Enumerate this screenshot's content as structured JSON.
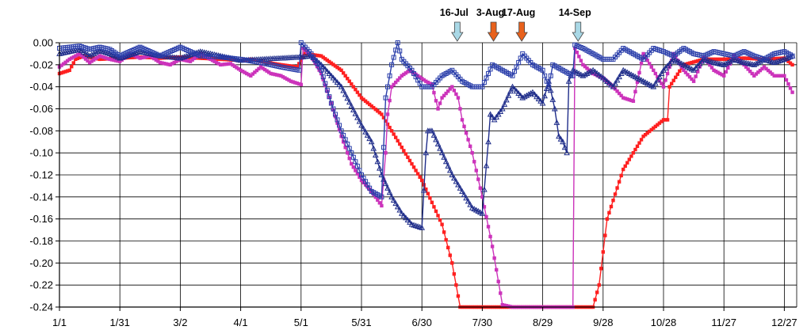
{
  "chart_data": {
    "type": "line",
    "title": "",
    "xlabel": "",
    "ylabel": "",
    "x_tick_labels": [
      "1/1",
      "1/31",
      "3/2",
      "4/1",
      "5/1",
      "5/31",
      "6/30",
      "7/30",
      "8/29",
      "9/28",
      "10/28",
      "11/27",
      "12/27"
    ],
    "x_tick_days": [
      0,
      30,
      60,
      90,
      120,
      150,
      180,
      210,
      240,
      270,
      300,
      330,
      360
    ],
    "xlim": [
      0,
      368
    ],
    "ylim": [
      -0.24,
      0.0
    ],
    "y_ticks": [
      0.0,
      -0.02,
      -0.04,
      -0.06,
      -0.08,
      -0.1,
      -0.12,
      -0.14,
      -0.16,
      -0.18,
      -0.2,
      -0.22,
      -0.24
    ],
    "y_tick_labels": [
      "0.00",
      "-0.02",
      "-0.04",
      "-0.06",
      "-0.08",
      "-0.10",
      "-0.12",
      "-0.14",
      "-0.16",
      "-0.18",
      "-0.20",
      "-0.22",
      "-0.24"
    ],
    "grid": true,
    "legend": "none",
    "annotations": [
      {
        "label": "16-Jul",
        "day": 196,
        "arrow_color": "#a9d8e6"
      },
      {
        "label": "3-Aug",
        "day": 214,
        "arrow_color": "#e8611c"
      },
      {
        "label": "17-Aug",
        "day": 228,
        "arrow_color": "#e8611c"
      },
      {
        "label": "14-Sep",
        "day": 256,
        "arrow_color": "#a9d8e6"
      }
    ],
    "series": [
      {
        "color": "#ff2020",
        "marker": "square",
        "x": [
          0,
          5,
          8,
          12,
          20,
          30,
          40,
          50,
          60,
          70,
          80,
          90,
          95,
          100,
          110,
          118,
          122,
          130,
          140,
          150,
          160,
          170,
          180,
          190,
          195,
          199,
          205,
          215,
          225,
          235,
          240,
          245,
          250,
          255,
          260,
          265,
          268,
          272,
          280,
          290,
          300,
          302,
          303,
          310,
          320,
          330,
          340,
          350,
          360,
          364
        ],
        "y": [
          -0.028,
          -0.025,
          -0.015,
          -0.012,
          -0.015,
          -0.014,
          -0.013,
          -0.014,
          -0.013,
          -0.014,
          -0.015,
          -0.016,
          -0.015,
          -0.017,
          -0.02,
          -0.022,
          -0.01,
          -0.012,
          -0.025,
          -0.05,
          -0.065,
          -0.095,
          -0.125,
          -0.165,
          -0.2,
          -0.24,
          -0.24,
          -0.24,
          -0.24,
          -0.24,
          -0.24,
          -0.24,
          -0.24,
          -0.24,
          -0.24,
          -0.24,
          -0.22,
          -0.16,
          -0.115,
          -0.085,
          -0.07,
          -0.07,
          -0.04,
          -0.02,
          -0.015,
          -0.015,
          -0.014,
          -0.015,
          -0.014,
          -0.02
        ]
      },
      {
        "color": "#cc33bb",
        "marker": "square",
        "x": [
          0,
          5,
          10,
          15,
          20,
          25,
          30,
          35,
          40,
          45,
          50,
          55,
          60,
          65,
          70,
          75,
          80,
          85,
          90,
          95,
          100,
          105,
          110,
          115,
          120,
          121,
          125,
          130,
          135,
          140,
          145,
          150,
          155,
          160,
          162,
          163,
          165,
          170,
          174,
          178,
          182,
          185,
          188,
          190,
          195,
          198,
          200,
          205,
          210,
          215,
          220,
          225,
          230,
          235,
          240,
          250,
          255,
          256,
          260,
          265,
          270,
          275,
          280,
          285,
          290,
          295,
          300,
          305,
          310,
          315,
          320,
          325,
          330,
          335,
          340,
          345,
          350,
          355,
          360,
          364
        ],
        "y": [
          -0.022,
          -0.015,
          -0.01,
          -0.018,
          -0.012,
          -0.015,
          -0.017,
          -0.01,
          -0.014,
          -0.012,
          -0.018,
          -0.02,
          -0.015,
          -0.017,
          -0.01,
          -0.015,
          -0.02,
          -0.019,
          -0.025,
          -0.03,
          -0.022,
          -0.028,
          -0.03,
          -0.035,
          -0.038,
          -0.005,
          -0.012,
          -0.028,
          -0.055,
          -0.085,
          -0.11,
          -0.125,
          -0.135,
          -0.148,
          -0.1,
          -0.065,
          -0.04,
          -0.03,
          -0.025,
          -0.03,
          -0.035,
          -0.038,
          -0.06,
          -0.05,
          -0.04,
          -0.05,
          -0.07,
          -0.1,
          -0.14,
          -0.185,
          -0.238,
          -0.24,
          -0.24,
          -0.24,
          -0.24,
          -0.24,
          -0.24,
          -0.005,
          -0.02,
          -0.028,
          -0.032,
          -0.04,
          -0.05,
          -0.053,
          -0.01,
          -0.025,
          -0.04,
          -0.01,
          -0.025,
          -0.035,
          -0.013,
          -0.025,
          -0.03,
          -0.012,
          -0.02,
          -0.03,
          -0.022,
          -0.03,
          -0.03,
          -0.045
        ]
      },
      {
        "color": "#1f2d8a",
        "marker": "triangle",
        "x": [
          0,
          5,
          10,
          15,
          20,
          25,
          30,
          40,
          50,
          60,
          70,
          80,
          90,
          100,
          110,
          120,
          125,
          130,
          140,
          150,
          155,
          160,
          165,
          170,
          175,
          180,
          182,
          183,
          185,
          190,
          195,
          200,
          205,
          210,
          213,
          214,
          216,
          220,
          225,
          230,
          235,
          240,
          243,
          246,
          248,
          250,
          252,
          253,
          255,
          260,
          265,
          270,
          275,
          280,
          285,
          290,
          295,
          300,
          305,
          310,
          315,
          320,
          325,
          330,
          335,
          340,
          345,
          350,
          355,
          360,
          364
        ],
        "y": [
          -0.01,
          -0.008,
          -0.006,
          -0.012,
          -0.007,
          -0.01,
          -0.014,
          -0.008,
          -0.012,
          -0.014,
          -0.008,
          -0.012,
          -0.016,
          -0.015,
          -0.014,
          -0.013,
          -0.012,
          -0.02,
          -0.04,
          -0.075,
          -0.09,
          -0.12,
          -0.14,
          -0.155,
          -0.165,
          -0.168,
          -0.1,
          -0.08,
          -0.08,
          -0.1,
          -0.12,
          -0.135,
          -0.15,
          -0.155,
          -0.09,
          -0.065,
          -0.07,
          -0.06,
          -0.04,
          -0.05,
          -0.045,
          -0.055,
          -0.035,
          -0.06,
          -0.085,
          -0.09,
          -0.1,
          -0.035,
          -0.025,
          -0.03,
          -0.025,
          -0.032,
          -0.04,
          -0.025,
          -0.03,
          -0.035,
          -0.04,
          -0.025,
          -0.015,
          -0.02,
          -0.025,
          -0.015,
          -0.018,
          -0.02,
          -0.015,
          -0.018,
          -0.02,
          -0.015,
          -0.018,
          -0.015,
          -0.012
        ]
      },
      {
        "color": "#2a3eaa",
        "marker": "square-open",
        "x": [
          0,
          5,
          10,
          15,
          20,
          25,
          30,
          40,
          50,
          60,
          70,
          80,
          90,
          100,
          110,
          119,
          120,
          125,
          130,
          135,
          140,
          145,
          150,
          155,
          160,
          162,
          165,
          168,
          170,
          175,
          180,
          185,
          190,
          195,
          200,
          205,
          210,
          215,
          220,
          225,
          230,
          235,
          240,
          243,
          245,
          250,
          255,
          256,
          260,
          265,
          270,
          275,
          280,
          285,
          290,
          295,
          300,
          305,
          310,
          315,
          320,
          325,
          330,
          335,
          340,
          345,
          350,
          355,
          360,
          364
        ],
        "y": [
          -0.005,
          -0.004,
          -0.003,
          -0.006,
          -0.004,
          -0.006,
          -0.012,
          -0.004,
          -0.012,
          -0.004,
          -0.012,
          -0.013,
          -0.015,
          -0.018,
          -0.022,
          -0.025,
          0.0,
          -0.01,
          -0.025,
          -0.055,
          -0.08,
          -0.1,
          -0.12,
          -0.135,
          -0.14,
          -0.05,
          -0.02,
          0.0,
          -0.015,
          -0.025,
          -0.04,
          -0.04,
          -0.03,
          -0.025,
          -0.035,
          -0.04,
          -0.04,
          -0.02,
          -0.025,
          -0.03,
          -0.01,
          -0.02,
          -0.025,
          -0.04,
          -0.02,
          -0.025,
          -0.03,
          -0.002,
          -0.005,
          -0.01,
          -0.015,
          -0.015,
          -0.005,
          -0.01,
          -0.015,
          -0.005,
          -0.008,
          -0.012,
          -0.005,
          -0.01,
          -0.012,
          -0.008,
          -0.01,
          -0.012,
          -0.008,
          -0.012,
          -0.015,
          -0.01,
          -0.008,
          -0.012
        ]
      }
    ]
  }
}
